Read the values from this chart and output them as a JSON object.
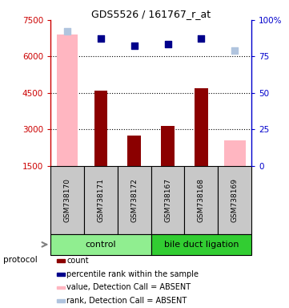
{
  "title": "GDS5526 / 161767_r_at",
  "samples": [
    "GSM738170",
    "GSM738171",
    "GSM738172",
    "GSM738167",
    "GSM738168",
    "GSM738169"
  ],
  "bar_values": [
    null,
    4600,
    2750,
    3150,
    4700,
    null
  ],
  "bar_absent_values": [
    6900,
    null,
    null,
    null,
    null,
    2550
  ],
  "dot_values": [
    null,
    6750,
    6450,
    6500,
    6750,
    null
  ],
  "dot_absent_values": [
    7050,
    null,
    null,
    null,
    null,
    6250
  ],
  "bar_color": "#8B0000",
  "bar_absent_color": "#FFB6C1",
  "dot_color": "#00008B",
  "dot_absent_color": "#B0C4DE",
  "ylim_left": [
    1500,
    7500
  ],
  "ylim_right": [
    0,
    100
  ],
  "yticks_left": [
    1500,
    3000,
    4500,
    6000,
    7500
  ],
  "yticks_right": [
    0,
    25,
    50,
    75,
    100
  ],
  "ytick_labels_right": [
    "0",
    "25",
    "50",
    "75",
    "100%"
  ],
  "left_axis_color": "#CC0000",
  "right_axis_color": "#0000CC",
  "dotted_lines": [
    3000,
    4500,
    6000
  ],
  "legend_items": [
    {
      "color": "#8B0000",
      "label": "count"
    },
    {
      "color": "#00008B",
      "label": "percentile rank within the sample"
    },
    {
      "color": "#FFB6C1",
      "label": "value, Detection Call = ABSENT"
    },
    {
      "color": "#B0C4DE",
      "label": "rank, Detection Call = ABSENT"
    }
  ],
  "control_group_color": "#90EE90",
  "bdl_group_color": "#32CD32",
  "protocol_label": "protocol",
  "sample_box_color": "#C8C8C8",
  "bar_width": 0.4
}
